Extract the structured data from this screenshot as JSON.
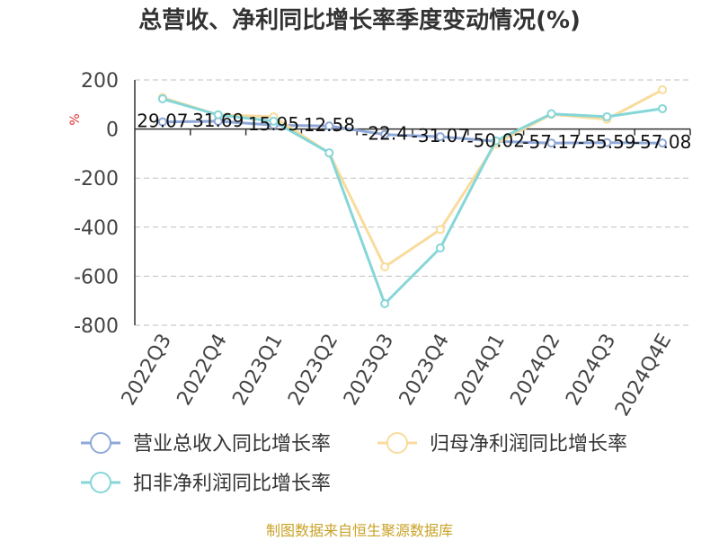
{
  "title": "总营收、净利同比增长率季度变动情况(%)",
  "footer": "制图数据来自恒生聚源数据库",
  "chart_data": {
    "type": "line",
    "title": "总营收、净利同比增长率季度变动情况(%)",
    "ylabel": "%",
    "ylim": [
      -800,
      200
    ],
    "yticks": [
      200,
      0,
      -200,
      -400,
      -600,
      -800
    ],
    "grid": true,
    "legend_position": "bottom",
    "categories": [
      "2022Q3",
      "2022Q4",
      "2023Q1",
      "2023Q2",
      "2023Q3",
      "2023Q4",
      "2024Q1",
      "2024Q2",
      "2024Q3",
      "2024Q4E"
    ],
    "series": [
      {
        "name": "营业总收入同比增长率",
        "color": "#8fa8d8",
        "values": [
          29.07,
          31.69,
          15.95,
          12.58,
          -22.4,
          -31.07,
          -50.02,
          -57.17,
          -55.59,
          -57.08
        ],
        "labels": [
          "29.07",
          "31.69",
          "15.95",
          "12.58",
          "-22.4",
          "-31.07",
          "-50.02",
          "-57.17",
          "-55.59",
          "-57.08"
        ]
      },
      {
        "name": "归母净利润同比增长率",
        "color": "#f9dc9c",
        "values": [
          128,
          58,
          50,
          -98,
          -562,
          -410,
          -60,
          60,
          40,
          160
        ]
      },
      {
        "name": "扣非净利润同比增长率",
        "color": "#86d6d8",
        "values": [
          123,
          58,
          32,
          -97,
          -712,
          -485,
          -48,
          62,
          50,
          83
        ]
      }
    ]
  }
}
